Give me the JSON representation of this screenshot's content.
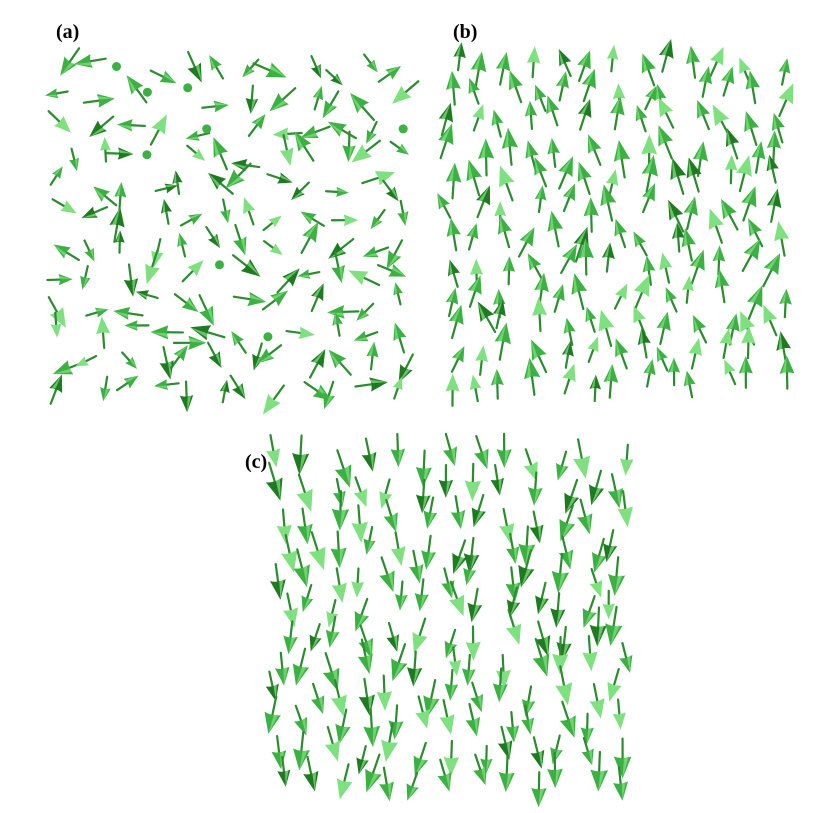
{
  "figure": {
    "panels": [
      {
        "id": "a",
        "label": "(a)",
        "pattern": "random-disordered"
      },
      {
        "id": "b",
        "label": "(b)",
        "pattern": "mostly-up"
      },
      {
        "id": "c",
        "label": "(c)",
        "pattern": "mostly-down"
      }
    ],
    "colors": {
      "arrow_head_light": "#7fe07f",
      "arrow_head_mid": "#3cb043",
      "arrow_head_dark": "#1f7a22",
      "arrow_shaft": "#2a8c2e",
      "background": "#ffffff"
    },
    "icon": "spin-arrow-icon"
  }
}
